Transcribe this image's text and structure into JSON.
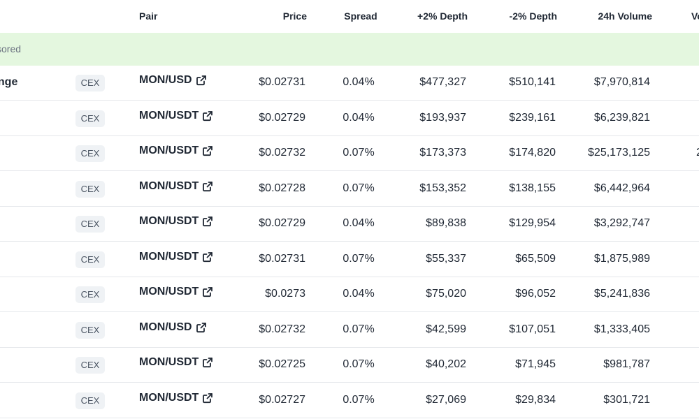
{
  "header": {
    "pair": "Pair",
    "price": "Price",
    "spread": "Spread",
    "depth_plus": "+2% Depth",
    "depth_minus": "-2% Depth",
    "volume_24h": "24h Volume",
    "next_col": "Vo"
  },
  "sponsored": {
    "label": "sored"
  },
  "rows": [
    {
      "exchange": "ange",
      "type": "CEX",
      "pair": "MON/USD",
      "price": "$0.02731",
      "spread": "0.04%",
      "depth_plus": "$477,327",
      "depth_minus": "$510,141",
      "volume": "$7,970,814",
      "extra": ""
    },
    {
      "exchange": "",
      "type": "CEX",
      "pair": "MON/USDT",
      "price": "$0.02729",
      "spread": "0.04%",
      "depth_plus": "$193,937",
      "depth_minus": "$239,161",
      "volume": "$6,239,821",
      "extra": ""
    },
    {
      "exchange": "",
      "type": "CEX",
      "pair": "MON/USDT",
      "price": "$0.02732",
      "spread": "0.07%",
      "depth_plus": "$173,373",
      "depth_minus": "$174,820",
      "volume": "$25,173,125",
      "extra": "2"
    },
    {
      "exchange": "",
      "type": "CEX",
      "pair": "MON/USDT",
      "price": "$0.02728",
      "spread": "0.07%",
      "depth_plus": "$153,352",
      "depth_minus": "$138,155",
      "volume": "$6,442,964",
      "extra": ""
    },
    {
      "exchange": "",
      "type": "CEX",
      "pair": "MON/USDT",
      "price": "$0.02729",
      "spread": "0.04%",
      "depth_plus": "$89,838",
      "depth_minus": "$129,954",
      "volume": "$3,292,747",
      "extra": ""
    },
    {
      "exchange": "",
      "type": "CEX",
      "pair": "MON/USDT",
      "price": "$0.02731",
      "spread": "0.07%",
      "depth_plus": "$55,337",
      "depth_minus": "$65,509",
      "volume": "$1,875,989",
      "extra": ""
    },
    {
      "exchange": "",
      "type": "CEX",
      "pair": "MON/USDT",
      "price": "$0.0273",
      "spread": "0.04%",
      "depth_plus": "$75,020",
      "depth_minus": "$96,052",
      "volume": "$5,241,836",
      "extra": ""
    },
    {
      "exchange": "",
      "type": "CEX",
      "pair": "MON/USD",
      "price": "$0.02732",
      "spread": "0.07%",
      "depth_plus": "$42,599",
      "depth_minus": "$107,051",
      "volume": "$1,333,405",
      "extra": ""
    },
    {
      "exchange": "",
      "type": "CEX",
      "pair": "MON/USDT",
      "price": "$0.02725",
      "spread": "0.07%",
      "depth_plus": "$40,202",
      "depth_minus": "$71,945",
      "volume": "$981,787",
      "extra": ""
    },
    {
      "exchange": "",
      "type": "CEX",
      "pair": "MON/USDT",
      "price": "$0.02727",
      "spread": "0.07%",
      "depth_plus": "$27,069",
      "depth_minus": "$29,834",
      "volume": "$301,721",
      "extra": ""
    }
  ],
  "icons": {
    "pair_link": "external-link-icon"
  },
  "colors": {
    "sponsored_bg": "#e4f7df",
    "badge_bg": "#eff2f5",
    "text": "#1f2733",
    "muted": "#6b7280"
  }
}
